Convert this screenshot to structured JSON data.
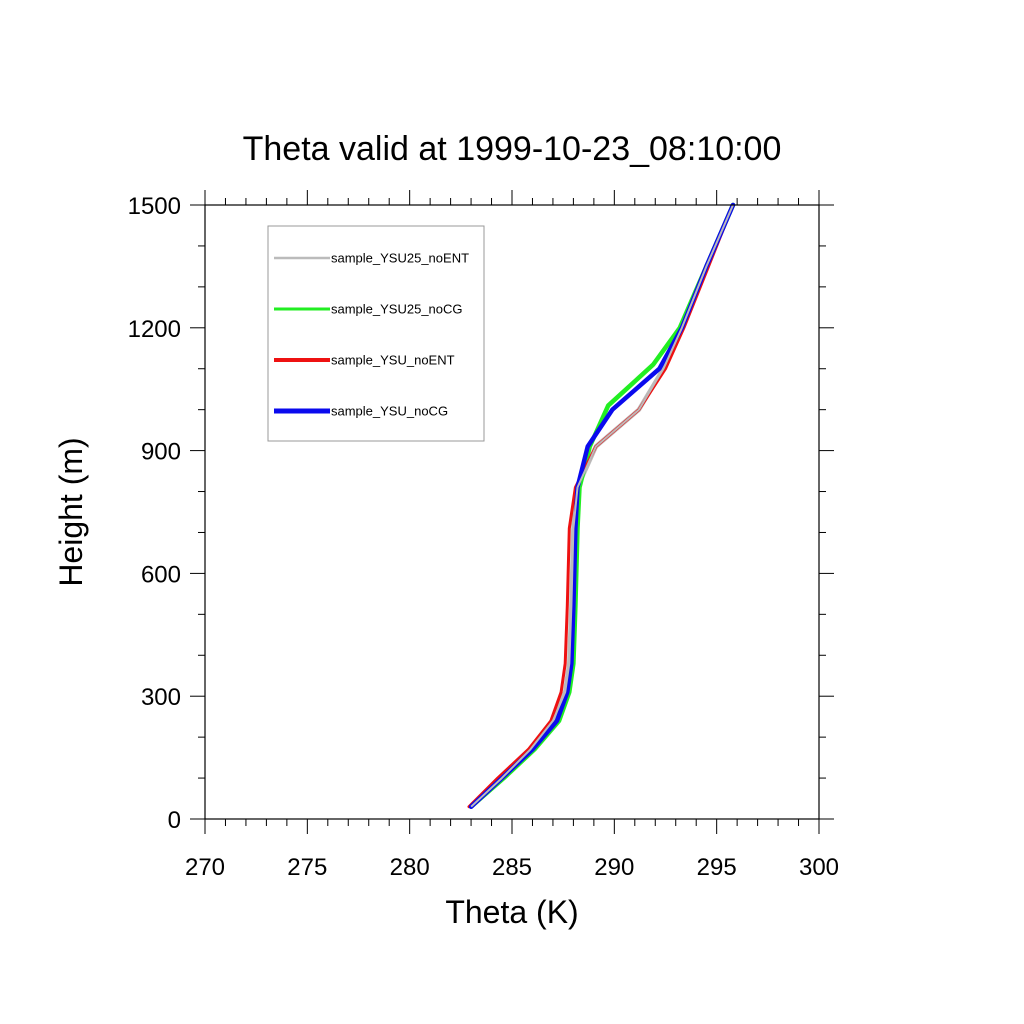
{
  "chart_data": {
    "type": "line",
    "title": "Theta valid at 1999-10-23_08:10:00",
    "xlabel": "Theta (K)",
    "ylabel": "Height (m)",
    "xlim": [
      270,
      300
    ],
    "ylim": [
      0,
      1500
    ],
    "xticks": [
      270,
      275,
      280,
      285,
      290,
      295,
      300
    ],
    "yticks": [
      0,
      300,
      600,
      900,
      1200,
      1500
    ],
    "grid": false,
    "legend_position": "top-left",
    "series": [
      {
        "name": "sample_YSU25_noENT",
        "color": "#bbbbbb",
        "x": [
          283.0,
          284.5,
          285.9,
          287.0,
          287.6,
          287.8,
          287.9,
          288.0,
          288.2,
          289.1,
          291.2,
          292.4,
          293.3,
          294.5,
          295.8
        ],
        "y": [
          30,
          100,
          170,
          240,
          310,
          380,
          520,
          710,
          810,
          910,
          1000,
          1100,
          1200,
          1350,
          1500
        ]
      },
      {
        "name": "sample_YSU25_noCG",
        "color": "#22ee22",
        "x": [
          283.0,
          284.6,
          286.1,
          287.3,
          287.8,
          288.0,
          288.1,
          288.2,
          288.3,
          288.8,
          289.7,
          291.9,
          293.2,
          294.5,
          295.8
        ],
        "y": [
          30,
          100,
          170,
          240,
          310,
          380,
          520,
          710,
          810,
          910,
          1010,
          1110,
          1200,
          1350,
          1500
        ]
      },
      {
        "name": "sample_YSU_noENT",
        "color": "#ee1111",
        "x": [
          282.9,
          284.3,
          285.8,
          286.9,
          287.4,
          287.6,
          287.7,
          287.8,
          288.1,
          289.1,
          291.2,
          292.5,
          293.4,
          294.6,
          295.8
        ],
        "y": [
          30,
          100,
          170,
          240,
          310,
          380,
          520,
          710,
          810,
          910,
          1000,
          1100,
          1200,
          1350,
          1500
        ]
      },
      {
        "name": "sample_YSU_noCG",
        "color": "#0a0aee",
        "x": [
          283.0,
          284.5,
          286.0,
          287.2,
          287.7,
          287.9,
          288.0,
          288.1,
          288.2,
          288.7,
          289.9,
          292.2,
          293.3,
          294.5,
          295.8
        ],
        "y": [
          30,
          100,
          170,
          240,
          310,
          380,
          520,
          710,
          810,
          910,
          1000,
          1100,
          1200,
          1350,
          1500
        ]
      }
    ]
  }
}
